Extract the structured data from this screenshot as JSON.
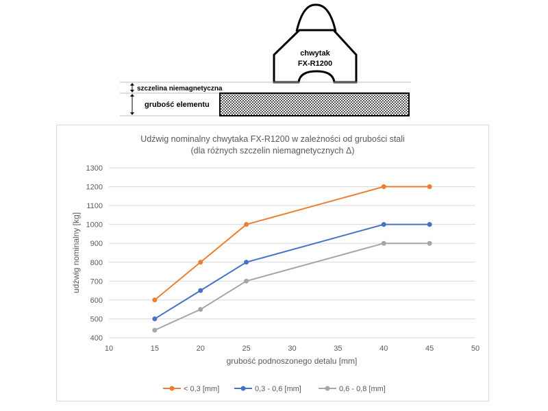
{
  "diagram": {
    "gripper_line1": "chwytak",
    "gripper_line2": "FX-R1200",
    "gap_label": "szczelina niemagnetyczna",
    "thickness_label": "grubość elementu"
  },
  "chart_data": {
    "type": "line",
    "title": "Udźwig nominalny chwytaka FX-R1200 w zależności od grubości stali",
    "subtitle": "(dla różnych szczelin niemagnetycznych Δ)",
    "xlabel": "grubość podnoszonego detalu [mm]",
    "ylabel": "udźwig nominalny [kg]",
    "xlim": [
      10,
      50
    ],
    "ylim": [
      400,
      1300
    ],
    "xticks": [
      10,
      15,
      20,
      25,
      30,
      35,
      40,
      45,
      50
    ],
    "yticks": [
      400,
      500,
      600,
      700,
      800,
      900,
      1000,
      1100,
      1200,
      1300
    ],
    "grid": true,
    "legend_position": "bottom",
    "x": [
      15,
      20,
      25,
      40,
      45
    ],
    "series": [
      {
        "name": "< 0,3 [mm]",
        "color": "#ED7D31",
        "values": [
          600,
          800,
          1000,
          1200,
          1200
        ]
      },
      {
        "name": "0,3 - 0,6 [mm]",
        "color": "#4472C4",
        "values": [
          500,
          650,
          800,
          1000,
          1000
        ]
      },
      {
        "name": "0,6 - 0,8 [mm]",
        "color": "#A5A5A5",
        "values": [
          440,
          550,
          700,
          900,
          900
        ]
      }
    ]
  }
}
